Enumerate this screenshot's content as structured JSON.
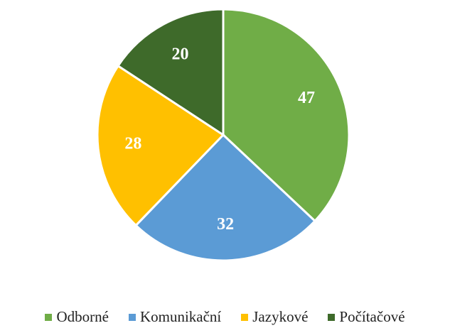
{
  "chart_data": {
    "type": "pie",
    "categories": [
      "Odborné",
      "Komunikační",
      "Jazykové",
      "Počítačové"
    ],
    "values": [
      47,
      32,
      28,
      20
    ],
    "colors": [
      "#70ad47",
      "#5b9bd5",
      "#ffc000",
      "#3e6a2a"
    ],
    "legend": "bottom"
  }
}
